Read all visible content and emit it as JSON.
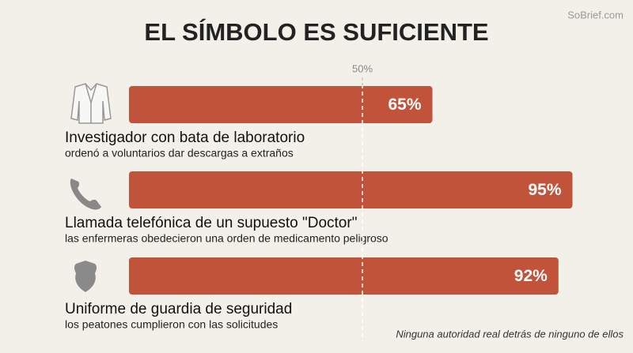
{
  "chart_data": {
    "type": "bar",
    "orientation": "horizontal",
    "title": "EL SÍMBOLO ES SUFICIENTE",
    "watermark": "SoBrief.com",
    "categories": [
      "Investigador con bata de laboratorio",
      "Llamada telefónica de un supuesto \"Doctor\"",
      "Uniforme de guardia de seguridad"
    ],
    "descriptions": [
      "ordenó a voluntarios dar descargas a extraños",
      "las enfermeras obedecieron una orden de medicamento peligroso",
      "los peatones cumplieron con las solicitudes"
    ],
    "values": [
      65,
      95,
      92
    ],
    "value_labels": [
      "65%",
      "95%",
      "92%"
    ],
    "color": "#c0533a",
    "xlim": [
      0,
      100
    ],
    "xticks": [
      {
        "value": 50,
        "label": "50%"
      }
    ],
    "footnote": "Ninguna autoridad real detrás de ninguno de ellos"
  }
}
